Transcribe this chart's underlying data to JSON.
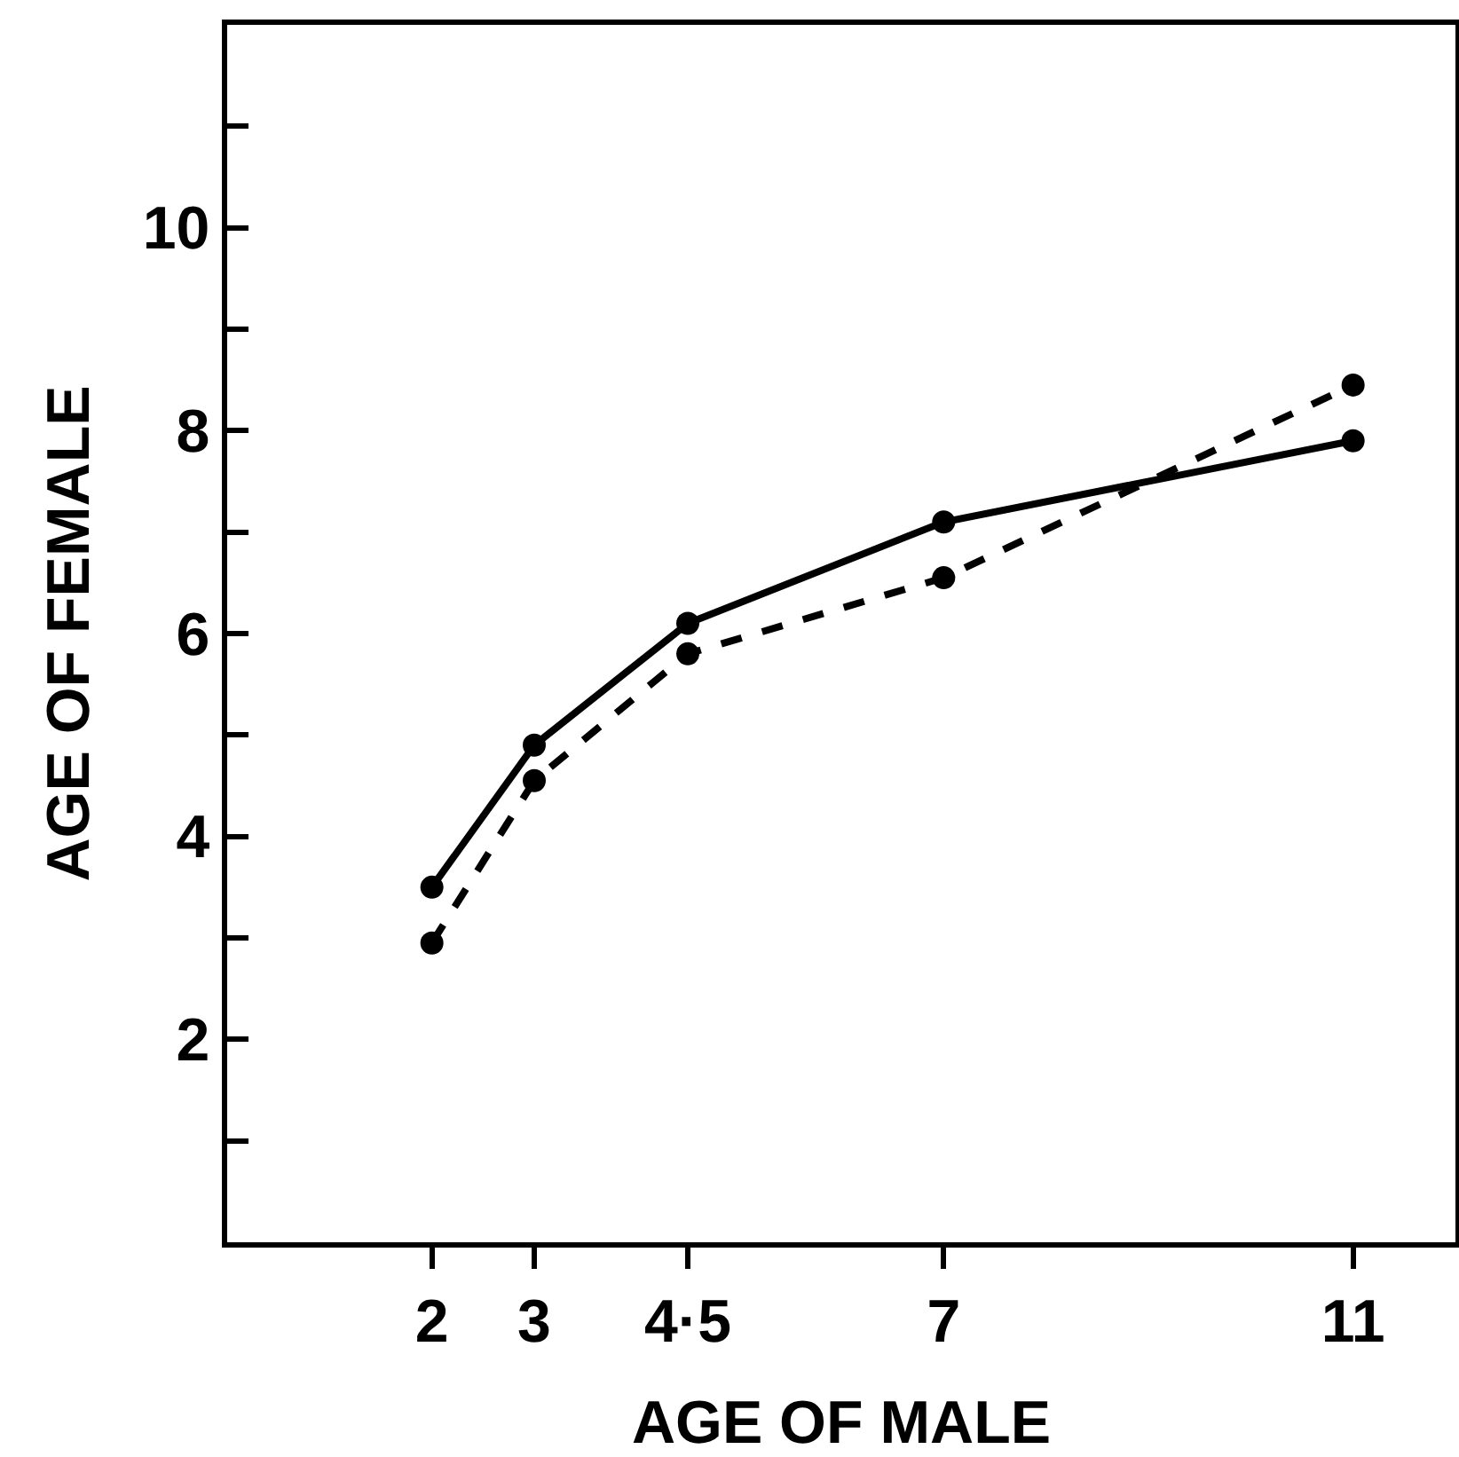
{
  "chart_data": {
    "type": "line",
    "xlabel": "AGE OF MALE",
    "ylabel": "AGE OF FEMALE",
    "x": [
      2,
      3,
      4.5,
      7,
      11
    ],
    "series": [
      {
        "color": "#000000",
        "line_style": "solid",
        "values": [
          3.5,
          4.9,
          6.1,
          7.1,
          7.9
        ]
      },
      {
        "color": "#000000",
        "line_style": "dashed",
        "values": [
          2.95,
          4.55,
          5.8,
          6.55,
          8.45
        ]
      }
    ],
    "xlim": [
      0,
      12
    ],
    "xticks": [
      2,
      3,
      {
        "value": 4.5,
        "label": "4·5"
      },
      7,
      11
    ],
    "ylim": [
      0,
      12
    ],
    "yticks": [
      {
        "value": 1,
        "label": null
      },
      2,
      {
        "value": 3,
        "label": null
      },
      4,
      {
        "value": 5,
        "label": null
      },
      6,
      {
        "value": 7,
        "label": null
      },
      8,
      {
        "value": 9,
        "label": null
      },
      10,
      {
        "value": 11,
        "label": null
      }
    ],
    "marker": "circle",
    "grid": false
  }
}
